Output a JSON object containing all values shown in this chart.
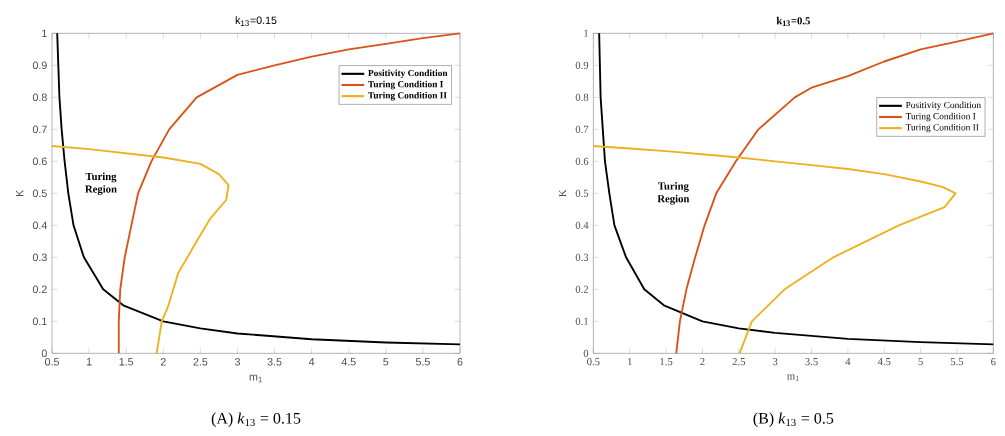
{
  "chart_data": [
    {
      "type": "line",
      "title": "k$_{13}$=0.15",
      "xlabel": "m$_{1}$",
      "ylabel": "K",
      "xlim": [
        0.5,
        6
      ],
      "ylim": [
        0,
        1
      ],
      "xticks": [
        0.5,
        1,
        1.5,
        2,
        2.5,
        3,
        3.5,
        4,
        4.5,
        5,
        5.5,
        6
      ],
      "yticks": [
        0,
        0.1,
        0.2,
        0.3,
        0.4,
        0.5,
        0.6,
        0.7,
        0.8,
        0.9,
        1
      ],
      "legend": "top right",
      "grid": false,
      "annotations": [
        "Turing Region",
        "(A) *k*$_{13}$ = 0.15"
      ],
      "series": [
        {
          "name": "Positivity Condition",
          "color": "#000000",
          "x": [
            0.57,
            0.6,
            0.63,
            0.67,
            0.72,
            0.79,
            0.93,
            1.19,
            1.46,
            2,
            2.5,
            3,
            4,
            5,
            6
          ],
          "values": [
            1,
            0.8,
            0.7,
            0.6,
            0.5,
            0.4,
            0.3,
            0.2,
            0.15,
            0.1,
            0.078,
            0.062,
            0.044,
            0.034,
            0.028
          ]
        },
        {
          "name": "Turing Condition I",
          "color": "#d95319",
          "x": [
            1.4,
            1.4,
            1.42,
            1.48,
            1.57,
            1.66,
            1.84,
            2.08,
            2.45,
            3,
            3.5,
            4,
            4.5,
            5,
            5.5,
            6
          ],
          "values": [
            0,
            0.1,
            0.2,
            0.3,
            0.4,
            0.5,
            0.6,
            0.7,
            0.8,
            0.87,
            0.9,
            0.927,
            0.95,
            0.967,
            0.985,
            1
          ]
        },
        {
          "name": "Turing Condition II",
          "color": "#edb120",
          "x": [
            0.5,
            1,
            1.5,
            2,
            2.5,
            2.75,
            2.88,
            2.85,
            2.63,
            2.45,
            2.2,
            2.07,
            1.98,
            1.91
          ],
          "values": [
            0.648,
            0.638,
            0.625,
            0.612,
            0.592,
            0.56,
            0.526,
            0.48,
            0.42,
            0.35,
            0.25,
            0.15,
            0.1,
            0
          ]
        }
      ]
    },
    {
      "type": "line",
      "title": "k$_{13}$=0.5",
      "xlabel": "m$_{1}$",
      "ylabel": "K",
      "xlim": [
        0.5,
        6
      ],
      "ylim": [
        0,
        1
      ],
      "xticks": [
        0.5,
        1,
        1.5,
        2,
        2.5,
        3,
        3.5,
        4,
        4.5,
        5,
        5.5,
        6
      ],
      "yticks": [
        0,
        0.1,
        0.2,
        0.3,
        0.4,
        0.5,
        0.6,
        0.7,
        0.8,
        0.9,
        1
      ],
      "legend": "right",
      "grid": false,
      "annotations": [
        "Turing Region",
        "(B) *k*$_{13}$ = 0.5"
      ],
      "series": [
        {
          "name": "Positivity Condition",
          "color": "#000000",
          "x": [
            0.58,
            0.6,
            0.63,
            0.66,
            0.72,
            0.79,
            0.95,
            1.2,
            1.47,
            2,
            2.5,
            3,
            4,
            5,
            6
          ],
          "values": [
            1,
            0.8,
            0.7,
            0.6,
            0.5,
            0.4,
            0.3,
            0.2,
            0.15,
            0.1,
            0.078,
            0.064,
            0.045,
            0.035,
            0.028
          ]
        },
        {
          "name": "Turing Condition I",
          "color": "#d95319",
          "x": [
            1.64,
            1.69,
            1.78,
            1.9,
            2.03,
            2.19,
            2.46,
            2.77,
            3.27,
            3.5,
            4,
            4.5,
            5,
            5.5,
            6
          ],
          "values": [
            0,
            0.1,
            0.2,
            0.3,
            0.4,
            0.5,
            0.6,
            0.7,
            0.8,
            0.83,
            0.866,
            0.912,
            0.95,
            0.974,
            1
          ]
        },
        {
          "name": "Turing Condition II",
          "color": "#edb120",
          "x": [
            0.5,
            1,
            1.5,
            2,
            2.5,
            3,
            3.5,
            4,
            4.5,
            5,
            5.3,
            5.48,
            5.33,
            4.7,
            3.8,
            3.13,
            2.68,
            2.51
          ],
          "values": [
            0.648,
            0.64,
            0.632,
            0.622,
            0.612,
            0.6,
            0.588,
            0.576,
            0.56,
            0.537,
            0.52,
            0.5,
            0.457,
            0.4,
            0.3,
            0.2,
            0.1,
            0
          ]
        }
      ]
    }
  ]
}
